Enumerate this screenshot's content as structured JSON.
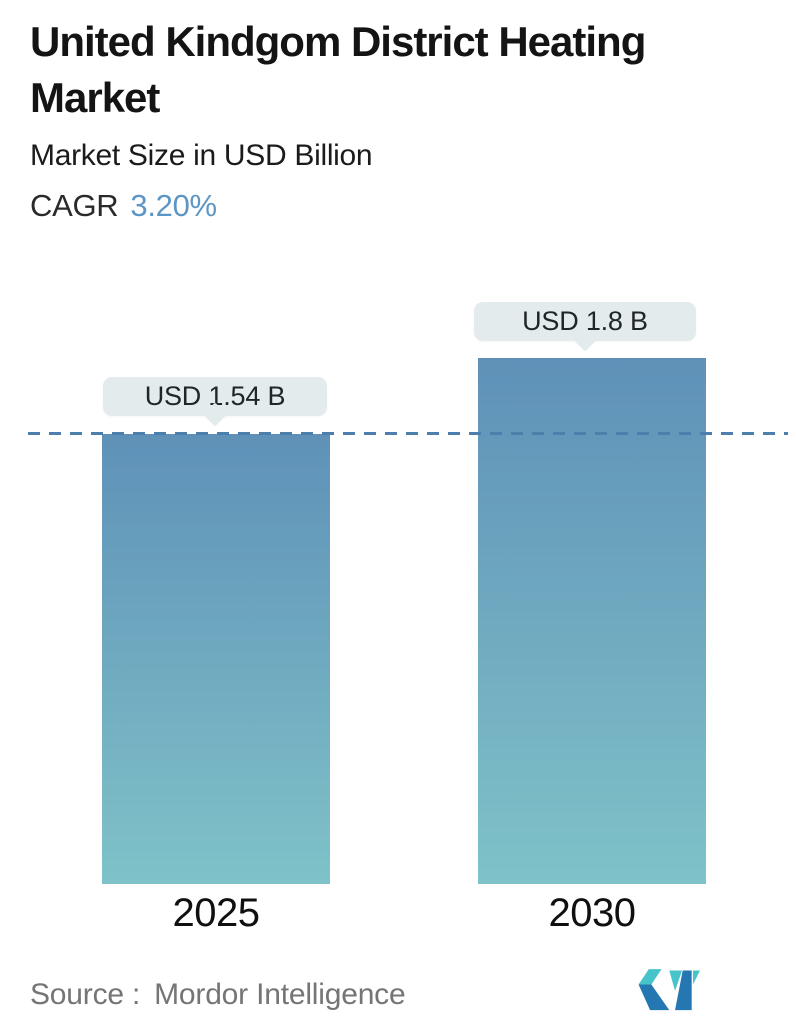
{
  "header": {
    "title": "United Kindgom District Heating Market",
    "title_line1": "United Kindgom District Heating",
    "title_line2": "Market",
    "subtitle": "Market Size in USD Billion",
    "cagr_label": "CAGR",
    "cagr_value": "3.20%"
  },
  "chart_data": {
    "type": "bar",
    "title": "United Kindgom District Heating Market",
    "subtitle": "Market Size in USD Billion",
    "cagr_percent": "3.20%",
    "categories": [
      "2025",
      "2030"
    ],
    "values": [
      1.54,
      1.8
    ],
    "value_labels": [
      "USD 1.54 B",
      "USD 1.8 B"
    ],
    "unit": "USD Billion",
    "ylim": [
      0,
      2.0
    ],
    "grid": false,
    "legend": "none",
    "reference_line": {
      "value": 1.54,
      "style": "dashed",
      "color": "#4d7fad"
    },
    "bar_gradient_top": "#5f91b8",
    "bar_gradient_bottom": "#7fc2c8",
    "label_bubble_color": "#e3ebec"
  },
  "footer": {
    "source_label": "Source :",
    "source_value": "Mordor Intelligence"
  },
  "logo": {
    "name": "Mordor Intelligence logo mark",
    "teal": "#47c4c9",
    "blue": "#2577b1"
  },
  "colors": {
    "title_text": "#141414",
    "cagr_value_blue": "#5d96c4",
    "source_text": "#757575"
  }
}
